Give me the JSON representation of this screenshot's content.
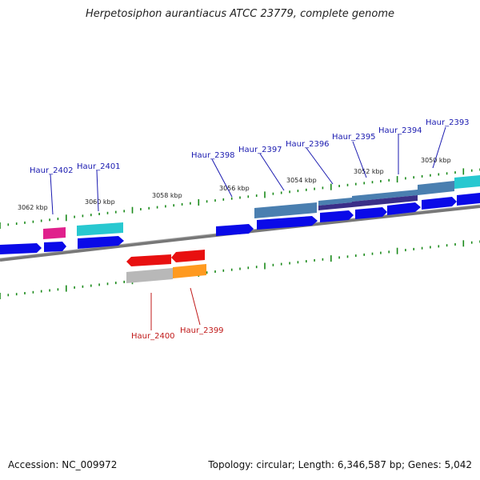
{
  "title": "Herpetosiphon aurantiacus ATCC 23779, complete genome",
  "footer": {
    "accession": "Accession: NC_009972",
    "summary": "Topology: circular; Length: 6,346,587 bp; Genes: 5,042"
  },
  "scale_labels": [
    "3062 kbp",
    "3060 kbp",
    "3058 kbp",
    "3056 kbp",
    "3054 kbp",
    "3052 kbp",
    "3050 kbp"
  ],
  "gene_labels_top": [
    "Haur_2402",
    "Haur_2401",
    "Haur_2398",
    "Haur_2397",
    "Haur_2396",
    "Haur_2395",
    "Haur_2394",
    "Haur_2393"
  ],
  "gene_labels_bottom": [
    "Haur_2400",
    "Haur_2399"
  ],
  "colors": {
    "forward_label": "#1a1ab0",
    "reverse_label": "#c01818",
    "gene_blue": "#0a0ae8",
    "magenta": "#e0208c",
    "cyan": "#28c8d0",
    "steel": "#4a7fb0",
    "navy": "#3a2f88",
    "red": "#e81010",
    "orange": "#ff9a20",
    "gray": "#b8b8b8",
    "tick_green": "#1a8a1a"
  }
}
